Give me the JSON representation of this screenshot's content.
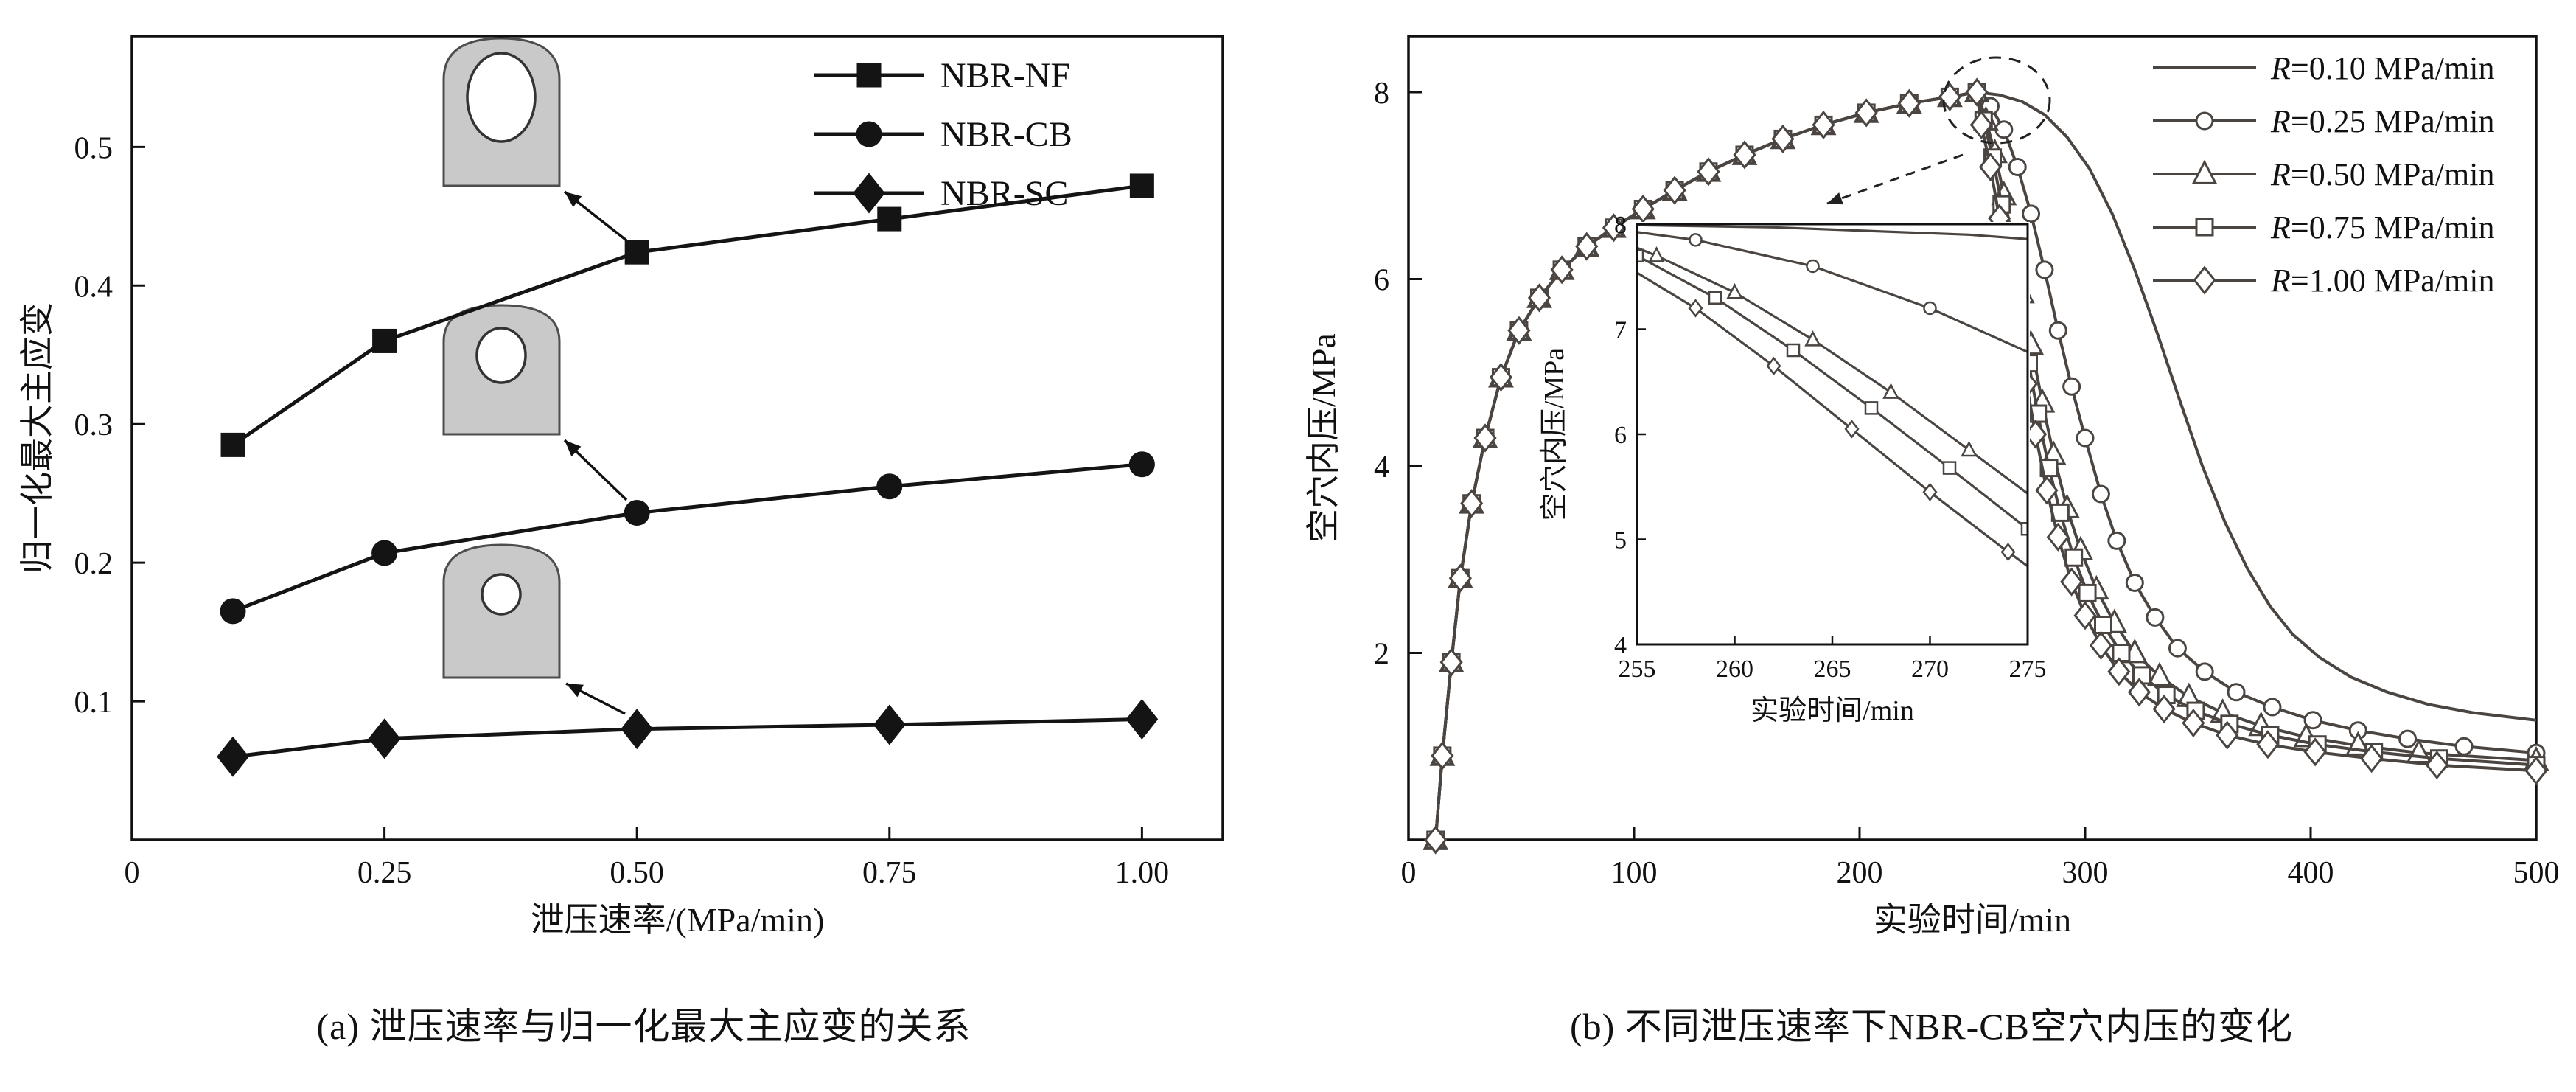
{
  "figure": {
    "caption_a": "(a) 泄压速率与归一化最大主应变的关系",
    "caption_b": "(b) 不同泄压速率下NBR-CB空穴内压的变化"
  },
  "chart_data": [
    {
      "type": "line",
      "xlabel": "泄压速率/(MPa/min)",
      "ylabel": "归一化最大主应变",
      "xlim": [
        0,
        1.08
      ],
      "ylim": [
        0,
        0.58
      ],
      "xticks": [
        0,
        0.25,
        0.5,
        0.75,
        1.0
      ],
      "xtick_labels": [
        "0",
        "0.25",
        "0.50",
        "0.75",
        "1.00"
      ],
      "yticks": [
        0.1,
        0.2,
        0.3,
        0.4,
        0.5
      ],
      "ytick_labels": [
        "0.1",
        "0.2",
        "0.3",
        "0.4",
        "0.5"
      ],
      "line_color": "#141414",
      "grid": false,
      "legend_position": "top-right",
      "x": [
        0.1,
        0.25,
        0.5,
        0.75,
        1.0
      ],
      "series": [
        {
          "name": "NBR-NF",
          "marker": "square",
          "values": [
            0.285,
            0.36,
            0.424,
            0.448,
            0.472
          ]
        },
        {
          "name": "NBR-CB",
          "marker": "circle",
          "values": [
            0.165,
            0.207,
            0.236,
            0.255,
            0.271
          ]
        },
        {
          "name": "NBR-SC",
          "marker": "diamond",
          "values": [
            0.06,
            0.073,
            0.08,
            0.083,
            0.087
          ]
        }
      ],
      "specimens": [
        {
          "cavity": "large"
        },
        {
          "cavity": "medium"
        },
        {
          "cavity": "small"
        }
      ]
    },
    {
      "type": "line",
      "xlabel": "实验时间/min",
      "ylabel": "空穴内压/MPa",
      "xlim": [
        0,
        500
      ],
      "ylim": [
        0,
        8.6
      ],
      "xticks": [
        0,
        100,
        200,
        300,
        400,
        500
      ],
      "yticks": [
        2,
        4,
        6,
        8
      ],
      "line_color": "#4b4542",
      "grid": false,
      "legend_position": "top-right",
      "shared_rise": [
        [
          12,
          0
        ],
        [
          15,
          0.9
        ],
        [
          19,
          1.9
        ],
        [
          23,
          2.8
        ],
        [
          28,
          3.6
        ],
        [
          34,
          4.3
        ],
        [
          41,
          4.95
        ],
        [
          49,
          5.45
        ],
        [
          58,
          5.8
        ],
        [
          68,
          6.1
        ],
        [
          79,
          6.35
        ],
        [
          91,
          6.55
        ],
        [
          104,
          6.75
        ],
        [
          118,
          6.95
        ],
        [
          133,
          7.15
        ],
        [
          149,
          7.33
        ],
        [
          166,
          7.5
        ],
        [
          184,
          7.65
        ],
        [
          203,
          7.78
        ],
        [
          222,
          7.88
        ],
        [
          240,
          7.95
        ],
        [
          252,
          8.0
        ]
      ],
      "series": [
        {
          "name": "R=0.10 MPa/min",
          "marker": "none",
          "decay": [
            [
              262,
              7.97
            ],
            [
              272,
              7.9
            ],
            [
              282,
              7.76
            ],
            [
              292,
              7.52
            ],
            [
              302,
              7.18
            ],
            [
              312,
              6.7
            ],
            [
              322,
              6.1
            ],
            [
              332,
              5.42
            ],
            [
              342,
              4.7
            ],
            [
              352,
              4.0
            ],
            [
              362,
              3.4
            ],
            [
              372,
              2.9
            ],
            [
              382,
              2.5
            ],
            [
              392,
              2.2
            ],
            [
              404,
              1.95
            ],
            [
              418,
              1.74
            ],
            [
              434,
              1.58
            ],
            [
              452,
              1.45
            ],
            [
              472,
              1.36
            ],
            [
              500,
              1.28
            ]
          ]
        },
        {
          "name": "R=0.25 MPa/min",
          "marker": "circle",
          "decay": [
            [
              258,
              7.85
            ],
            [
              264,
              7.6
            ],
            [
              270,
              7.2
            ],
            [
              276,
              6.7
            ],
            [
              282,
              6.1
            ],
            [
              288,
              5.45
            ],
            [
              294,
              4.85
            ],
            [
              300,
              4.3
            ],
            [
              307,
              3.7
            ],
            [
              314,
              3.2
            ],
            [
              322,
              2.75
            ],
            [
              331,
              2.38
            ],
            [
              341,
              2.05
            ],
            [
              353,
              1.8
            ],
            [
              367,
              1.58
            ],
            [
              383,
              1.42
            ],
            [
              401,
              1.28
            ],
            [
              421,
              1.17
            ],
            [
              443,
              1.08
            ],
            [
              468,
              1.0
            ],
            [
              500,
              0.93
            ]
          ]
        },
        {
          "name": "R=0.50 MPa/min",
          "marker": "triangle",
          "decay": [
            [
              256,
              7.7
            ],
            [
              260,
              7.35
            ],
            [
              264,
              6.9
            ],
            [
              268,
              6.4
            ],
            [
              272,
              5.85
            ],
            [
              276,
              5.3
            ],
            [
              281,
              4.68
            ],
            [
              286,
              4.12
            ],
            [
              292,
              3.55
            ],
            [
              298,
              3.1
            ],
            [
              305,
              2.68
            ],
            [
              313,
              2.32
            ],
            [
              322,
              2.0
            ],
            [
              333,
              1.75
            ],
            [
              346,
              1.53
            ],
            [
              361,
              1.36
            ],
            [
              378,
              1.22
            ],
            [
              398,
              1.1
            ],
            [
              421,
              1.01
            ],
            [
              448,
              0.93
            ],
            [
              500,
              0.85
            ]
          ]
        },
        {
          "name": "R=0.75 MPa/min",
          "marker": "square",
          "decay": [
            [
              255,
              7.7
            ],
            [
              259,
              7.3
            ],
            [
              263,
              6.8
            ],
            [
              267,
              6.25
            ],
            [
              271,
              5.68
            ],
            [
              275,
              5.1
            ],
            [
              279,
              4.56
            ],
            [
              284,
              3.98
            ],
            [
              289,
              3.5
            ],
            [
              295,
              3.02
            ],
            [
              301,
              2.64
            ],
            [
              308,
              2.3
            ],
            [
              316,
              2.0
            ],
            [
              325,
              1.76
            ],
            [
              336,
              1.55
            ],
            [
              349,
              1.38
            ],
            [
              364,
              1.24
            ],
            [
              382,
              1.12
            ],
            [
              403,
              1.02
            ],
            [
              428,
              0.94
            ],
            [
              457,
              0.87
            ],
            [
              500,
              0.8
            ]
          ]
        },
        {
          "name": "R=1.00 MPa/min",
          "marker": "diamond",
          "decay": [
            [
              254,
              7.65
            ],
            [
              258,
              7.2
            ],
            [
              262,
              6.65
            ],
            [
              266,
              6.05
            ],
            [
              270,
              5.45
            ],
            [
              274,
              4.88
            ],
            [
              278,
              4.34
            ],
            [
              283,
              3.74
            ],
            [
              288,
              3.24
            ],
            [
              294,
              2.76
            ],
            [
              300,
              2.4
            ],
            [
              307,
              2.08
            ],
            [
              315,
              1.8
            ],
            [
              324,
              1.58
            ],
            [
              335,
              1.4
            ],
            [
              348,
              1.25
            ],
            [
              363,
              1.12
            ],
            [
              381,
              1.02
            ],
            [
              402,
              0.94
            ],
            [
              427,
              0.87
            ],
            [
              456,
              0.8
            ],
            [
              500,
              0.74
            ]
          ]
        }
      ],
      "inset": {
        "xlabel": "实验时间/min",
        "ylabel": "空穴内压/MPa",
        "xlim": [
          255,
          275
        ],
        "ylim": [
          4,
          8
        ],
        "xticks": [
          255,
          260,
          265,
          270,
          275
        ],
        "yticks": [
          4,
          5,
          6,
          7,
          8
        ]
      }
    }
  ]
}
